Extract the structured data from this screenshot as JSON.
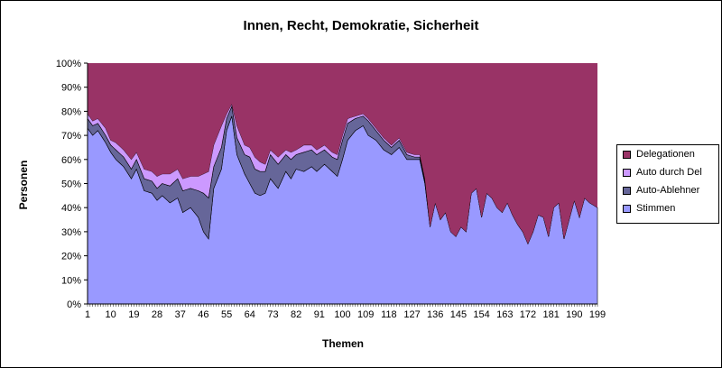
{
  "chart_data": {
    "type": "area",
    "stacked_percent": true,
    "title": "Innen, Recht, Demokratie, Sicherheit",
    "xlabel": "Themen",
    "ylabel": "Personen",
    "ylim": [
      0,
      100
    ],
    "yticks": [
      "0%",
      "10%",
      "20%",
      "30%",
      "40%",
      "50%",
      "60%",
      "70%",
      "80%",
      "90%",
      "100%"
    ],
    "xticks": [
      "1",
      "10",
      "19",
      "28",
      "37",
      "46",
      "55",
      "64",
      "73",
      "82",
      "91",
      "100",
      "109",
      "118",
      "127",
      "136",
      "145",
      "154",
      "163",
      "172",
      "181",
      "190",
      "199"
    ],
    "x_range": [
      1,
      199
    ],
    "legend_position": "right",
    "grid": false,
    "series_cumulative_top_note": "values are approximate cumulative percentages at anchor themes",
    "series": [
      {
        "name": "Stimmen",
        "color": "#9999ff",
        "anchors": [
          [
            1,
            73
          ],
          [
            3,
            70
          ],
          [
            5,
            72
          ],
          [
            8,
            67
          ],
          [
            10,
            63
          ],
          [
            12,
            60
          ],
          [
            15,
            57
          ],
          [
            18,
            52
          ],
          [
            20,
            56
          ],
          [
            23,
            47
          ],
          [
            26,
            46
          ],
          [
            28,
            43
          ],
          [
            30,
            45
          ],
          [
            33,
            42
          ],
          [
            36,
            44
          ],
          [
            38,
            38
          ],
          [
            41,
            40
          ],
          [
            44,
            36
          ],
          [
            46,
            30
          ],
          [
            48,
            27
          ],
          [
            50,
            48
          ],
          [
            53,
            56
          ],
          [
            55,
            72
          ],
          [
            57,
            78
          ],
          [
            59,
            62
          ],
          [
            62,
            54
          ],
          [
            64,
            50
          ],
          [
            66,
            46
          ],
          [
            68,
            45
          ],
          [
            70,
            46
          ],
          [
            72,
            52
          ],
          [
            75,
            48
          ],
          [
            78,
            55
          ],
          [
            80,
            52
          ],
          [
            82,
            56
          ],
          [
            85,
            55
          ],
          [
            88,
            57
          ],
          [
            90,
            55
          ],
          [
            93,
            58
          ],
          [
            96,
            55
          ],
          [
            98,
            53
          ],
          [
            100,
            60
          ],
          [
            102,
            68
          ],
          [
            105,
            72
          ],
          [
            108,
            74
          ],
          [
            110,
            70
          ],
          [
            113,
            68
          ],
          [
            116,
            64
          ],
          [
            119,
            62
          ],
          [
            122,
            65
          ],
          [
            125,
            60
          ],
          [
            128,
            60
          ],
          [
            130,
            60
          ],
          [
            132,
            50
          ],
          [
            134,
            32
          ],
          [
            136,
            42
          ],
          [
            138,
            35
          ],
          [
            140,
            38
          ],
          [
            142,
            30
          ],
          [
            144,
            28
          ],
          [
            146,
            32
          ],
          [
            148,
            30
          ],
          [
            150,
            46
          ],
          [
            152,
            48
          ],
          [
            154,
            36
          ],
          [
            156,
            46
          ],
          [
            158,
            44
          ],
          [
            160,
            40
          ],
          [
            162,
            38
          ],
          [
            164,
            42
          ],
          [
            166,
            37
          ],
          [
            168,
            33
          ],
          [
            170,
            30
          ],
          [
            172,
            25
          ],
          [
            174,
            30
          ],
          [
            176,
            37
          ],
          [
            178,
            36
          ],
          [
            180,
            28
          ],
          [
            182,
            40
          ],
          [
            184,
            42
          ],
          [
            186,
            27
          ],
          [
            188,
            35
          ],
          [
            190,
            43
          ],
          [
            192,
            36
          ],
          [
            194,
            44
          ],
          [
            196,
            42
          ],
          [
            199,
            40
          ]
        ]
      },
      {
        "name": "Auto-Ablehner",
        "color": "#666699",
        "anchors": [
          [
            1,
            77
          ],
          [
            3,
            74
          ],
          [
            5,
            75
          ],
          [
            8,
            70
          ],
          [
            10,
            66
          ],
          [
            12,
            64
          ],
          [
            15,
            61
          ],
          [
            18,
            56
          ],
          [
            20,
            60
          ],
          [
            23,
            52
          ],
          [
            26,
            51
          ],
          [
            28,
            48
          ],
          [
            30,
            50
          ],
          [
            33,
            49
          ],
          [
            36,
            52
          ],
          [
            38,
            47
          ],
          [
            41,
            48
          ],
          [
            44,
            47
          ],
          [
            46,
            46
          ],
          [
            48,
            44
          ],
          [
            50,
            57
          ],
          [
            53,
            65
          ],
          [
            55,
            77
          ],
          [
            57,
            82
          ],
          [
            59,
            69
          ],
          [
            62,
            62
          ],
          [
            64,
            61
          ],
          [
            66,
            56
          ],
          [
            68,
            55
          ],
          [
            70,
            55
          ],
          [
            72,
            62
          ],
          [
            75,
            58
          ],
          [
            78,
            62
          ],
          [
            80,
            60
          ],
          [
            82,
            62
          ],
          [
            85,
            63
          ],
          [
            88,
            64
          ],
          [
            90,
            62
          ],
          [
            93,
            64
          ],
          [
            96,
            61
          ],
          [
            98,
            60
          ],
          [
            100,
            68
          ],
          [
            102,
            75
          ],
          [
            105,
            77
          ],
          [
            108,
            78
          ],
          [
            110,
            76
          ],
          [
            113,
            72
          ],
          [
            116,
            68
          ],
          [
            119,
            65
          ],
          [
            122,
            68
          ],
          [
            125,
            62
          ],
          [
            128,
            61
          ],
          [
            130,
            61
          ],
          [
            132,
            51
          ],
          [
            134,
            32
          ],
          [
            136,
            42
          ],
          [
            138,
            35
          ],
          [
            140,
            38
          ],
          [
            142,
            30
          ],
          [
            144,
            28
          ],
          [
            146,
            32
          ],
          [
            148,
            30
          ],
          [
            150,
            46
          ],
          [
            152,
            48
          ],
          [
            154,
            36
          ],
          [
            156,
            46
          ],
          [
            158,
            44
          ],
          [
            160,
            40
          ],
          [
            162,
            38
          ],
          [
            164,
            42
          ],
          [
            166,
            37
          ],
          [
            168,
            33
          ],
          [
            170,
            30
          ],
          [
            172,
            25
          ],
          [
            174,
            30
          ],
          [
            176,
            37
          ],
          [
            178,
            36
          ],
          [
            180,
            28
          ],
          [
            182,
            40
          ],
          [
            184,
            42
          ],
          [
            186,
            27
          ],
          [
            188,
            35
          ],
          [
            190,
            43
          ],
          [
            192,
            36
          ],
          [
            194,
            44
          ],
          [
            196,
            42
          ],
          [
            199,
            40
          ]
        ]
      },
      {
        "name": "Auto durch Del",
        "color": "#cc99ff",
        "anchors": [
          [
            1,
            79
          ],
          [
            3,
            76
          ],
          [
            5,
            77
          ],
          [
            8,
            73
          ],
          [
            10,
            68
          ],
          [
            12,
            67
          ],
          [
            15,
            64
          ],
          [
            18,
            60
          ],
          [
            20,
            63
          ],
          [
            23,
            56
          ],
          [
            26,
            55
          ],
          [
            28,
            53
          ],
          [
            30,
            54
          ],
          [
            33,
            54
          ],
          [
            36,
            56
          ],
          [
            38,
            52
          ],
          [
            41,
            53
          ],
          [
            44,
            53
          ],
          [
            46,
            54
          ],
          [
            48,
            55
          ],
          [
            50,
            66
          ],
          [
            53,
            74
          ],
          [
            55,
            79
          ],
          [
            57,
            83
          ],
          [
            59,
            74
          ],
          [
            62,
            66
          ],
          [
            64,
            65
          ],
          [
            66,
            61
          ],
          [
            68,
            59
          ],
          [
            70,
            58
          ],
          [
            72,
            64
          ],
          [
            75,
            61
          ],
          [
            78,
            64
          ],
          [
            80,
            63
          ],
          [
            82,
            64
          ],
          [
            85,
            66
          ],
          [
            88,
            66
          ],
          [
            90,
            64
          ],
          [
            93,
            66
          ],
          [
            96,
            63
          ],
          [
            98,
            62
          ],
          [
            100,
            70
          ],
          [
            102,
            77
          ],
          [
            105,
            78
          ],
          [
            108,
            79
          ],
          [
            110,
            77
          ],
          [
            113,
            73
          ],
          [
            116,
            69
          ],
          [
            119,
            66
          ],
          [
            122,
            69
          ],
          [
            125,
            63
          ],
          [
            128,
            62
          ],
          [
            130,
            62
          ],
          [
            132,
            52
          ],
          [
            134,
            32
          ],
          [
            136,
            42
          ],
          [
            138,
            35
          ],
          [
            140,
            38
          ],
          [
            142,
            30
          ],
          [
            144,
            28
          ],
          [
            146,
            32
          ],
          [
            148,
            30
          ],
          [
            150,
            46
          ],
          [
            152,
            48
          ],
          [
            154,
            36
          ],
          [
            156,
            46
          ],
          [
            158,
            44
          ],
          [
            160,
            40
          ],
          [
            162,
            38
          ],
          [
            164,
            42
          ],
          [
            166,
            37
          ],
          [
            168,
            33
          ],
          [
            170,
            30
          ],
          [
            172,
            25
          ],
          [
            174,
            30
          ],
          [
            176,
            37
          ],
          [
            178,
            36
          ],
          [
            180,
            28
          ],
          [
            182,
            40
          ],
          [
            184,
            42
          ],
          [
            186,
            27
          ],
          [
            188,
            35
          ],
          [
            190,
            43
          ],
          [
            192,
            36
          ],
          [
            194,
            44
          ],
          [
            196,
            42
          ],
          [
            199,
            40
          ]
        ]
      },
      {
        "name": "Delegationen",
        "color": "#993366",
        "anchors": [
          [
            1,
            100
          ],
          [
            199,
            100
          ]
        ]
      }
    ]
  },
  "legend": [
    {
      "label": "Delegationen",
      "color": "#993366"
    },
    {
      "label": "Auto durch Del",
      "color": "#cc99ff"
    },
    {
      "label": "Auto-Ablehner",
      "color": "#666699"
    },
    {
      "label": "Stimmen",
      "color": "#9999ff"
    }
  ]
}
